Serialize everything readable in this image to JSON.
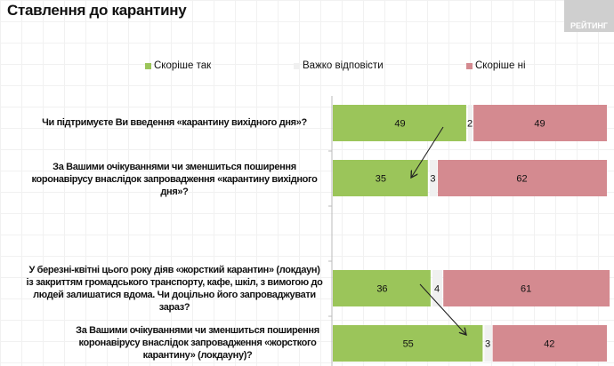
{
  "title": "Ставлення до карантину",
  "logo_text": "РЕЙТИНГ",
  "chart_data": {
    "type": "bar",
    "orientation": "horizontal-stacked",
    "title": "Ставлення до карантину",
    "categories": [
      "Чи підтримуєте Ви введення «карантину вихідного дня»?",
      "За Вашими очікуваннями чи зменшиться поширення коронавірусу внаслідок запровадження «карантину вихідного дня»?",
      "У березні-квітні цього року діяв «жорсткий карантин» (локдаун) із закриттям громадського транспорту, кафе, шкіл, з вимогою до людей залишатися вдома. Чи доцільно його запроваджувати зараз?",
      "За Вашими очікуваннями чи зменшиться поширення коронавірусу внаслідок запровадження «жорсткого карантину» (локдауну)?"
    ],
    "series": [
      {
        "name": "Скоріше так",
        "color": "#9bc55a",
        "values": [
          49,
          35,
          36,
          55
        ]
      },
      {
        "name": "Важко відповісти",
        "color": "#f0f0f0",
        "values": [
          2,
          3,
          4,
          3
        ]
      },
      {
        "name": "Скоріше ні",
        "color": "#d48a90",
        "values": [
          49,
          62,
          61,
          42
        ]
      }
    ],
    "xlim": [
      0,
      100
    ],
    "legend": "top"
  }
}
